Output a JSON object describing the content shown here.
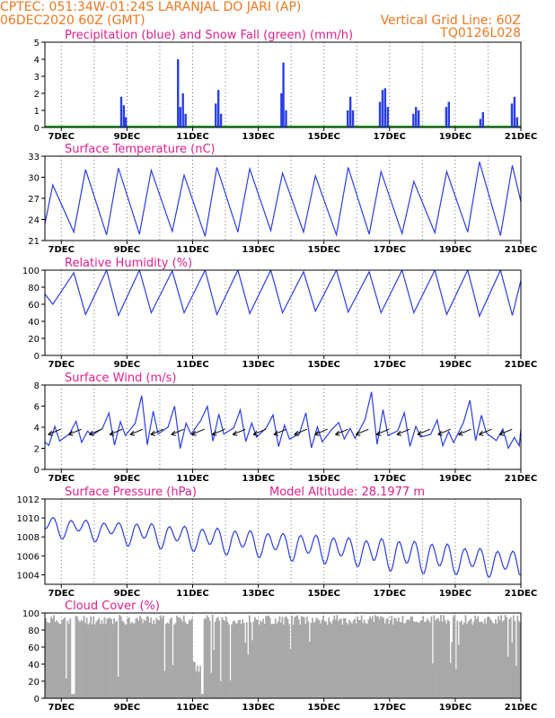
{
  "header": {
    "line1_left": "CPTEC:  051:34W-01:24S  LARANJAL DO JARI (AP)",
    "line2_left": "06DEC2020 60Z (GMT)",
    "line2_right": "Vertical Grid Line: 60Z",
    "line3_right": "TQ0126L028"
  },
  "colors": {
    "header": "#f07820",
    "title": "#e0208e",
    "series": "#2a3ee6",
    "snow": "#1aa61a",
    "cloud": "#a8a8a8",
    "wind_arrow": "#000000"
  },
  "x_axis": {
    "start_day": 6.5,
    "end_day": 21,
    "tick_labels": [
      "7DEC",
      "9DEC",
      "11DEC",
      "13DEC",
      "15DEC",
      "17DEC",
      "19DEC",
      "21DEC"
    ]
  },
  "chart_data": [
    {
      "type": "bar",
      "title": "Precipitation (blue) and Snow Fall (green) (mm/h)",
      "ylim": [
        0,
        5
      ],
      "yticks": [
        0,
        1,
        2,
        3,
        4,
        5
      ],
      "series": [
        {
          "name": "Precipitation",
          "points": [
            [
              8.82,
              1.8
            ],
            [
              8.9,
              1.3
            ],
            [
              8.96,
              0.6
            ],
            [
              10.55,
              4.0
            ],
            [
              10.62,
              1.2
            ],
            [
              10.7,
              2.0
            ],
            [
              10.78,
              0.8
            ],
            [
              11.7,
              1.4
            ],
            [
              11.78,
              2.2
            ],
            [
              11.86,
              0.8
            ],
            [
              13.7,
              2.0
            ],
            [
              13.76,
              3.8
            ],
            [
              13.84,
              1.0
            ],
            [
              15.72,
              1.0
            ],
            [
              15.8,
              1.8
            ],
            [
              15.88,
              1.0
            ],
            [
              16.7,
              1.5
            ],
            [
              16.78,
              2.2
            ],
            [
              16.86,
              2.3
            ],
            [
              16.94,
              1.2
            ],
            [
              17.72,
              0.8
            ],
            [
              17.8,
              1.2
            ],
            [
              17.88,
              1.0
            ],
            [
              18.72,
              1.2
            ],
            [
              18.8,
              1.5
            ],
            [
              19.76,
              0.5
            ],
            [
              19.84,
              0.9
            ],
            [
              20.72,
              1.4
            ],
            [
              20.8,
              1.8
            ],
            [
              20.88,
              0.6
            ]
          ]
        },
        {
          "name": "Snow Fall",
          "values": [
            0.05
          ]
        }
      ]
    },
    {
      "type": "line",
      "title": "Surface Temperature (nC)",
      "ylim": [
        21,
        33
      ],
      "yticks": [
        21,
        24,
        27,
        30,
        33
      ],
      "daily_min": [
        21.0,
        22.2,
        21.8,
        21.9,
        22.3,
        21.6,
        22.2,
        22.4,
        22.2,
        21.8,
        21.9,
        22.0,
        22.1,
        22.2,
        21.7
      ],
      "daily_max": [
        28.9,
        31.1,
        31.3,
        31.0,
        30.3,
        31.4,
        31.2,
        30.6,
        30.2,
        31.4,
        30.8,
        29.4,
        30.8,
        32.2,
        31.7
      ],
      "end_value": 26.5
    },
    {
      "type": "line",
      "title": "Relative Humidity (%)",
      "ylim": [
        0,
        100
      ],
      "yticks": [
        0,
        20,
        40,
        60,
        80,
        100
      ],
      "daily_min": [
        60,
        48,
        47,
        50,
        50,
        48,
        49,
        50,
        52,
        51,
        50,
        50,
        48,
        46,
        47
      ],
      "daily_max": [
        100,
        97,
        100,
        100,
        99,
        100,
        100,
        100,
        98,
        100,
        98,
        100,
        100,
        100,
        100
      ],
      "end_value": 88
    },
    {
      "type": "line",
      "title": "Surface Wind (m/s)",
      "ylim": [
        0,
        8
      ],
      "yticks": [
        0,
        2,
        4,
        6,
        8
      ],
      "daily_min": [
        1.8,
        2.2,
        1.9,
        1.7,
        1.5,
        2.1,
        2.0,
        1.8,
        1.6,
        2.3,
        1.3,
        1.9,
        1.5,
        1.8,
        1.5
      ],
      "daily_max": [
        5.0,
        4.6,
        5.4,
        7.0,
        6.0,
        6.2,
        5.6,
        5.2,
        5.2,
        4.6,
        7.4,
        5.4,
        4.6,
        6.6,
        4.0
      ],
      "end_value": 3.8,
      "arrows_every_hours": 6
    },
    {
      "type": "line",
      "title": "Surface Pressure (hPa)",
      "ylim": [
        1003,
        1012
      ],
      "yticks": [
        1004,
        1006,
        1008,
        1010,
        1012
      ],
      "amplitudes": [
        1.6,
        2.0,
        2.2,
        2.4,
        2.8,
        2.4
      ],
      "end_value": 1004,
      "annotation": "Model Altitude: 28.1977 m"
    },
    {
      "type": "area",
      "title": "Cloud Cover (%)",
      "ylim": [
        0,
        100
      ],
      "yticks": [
        0,
        20,
        40,
        60,
        80,
        100
      ]
    }
  ]
}
